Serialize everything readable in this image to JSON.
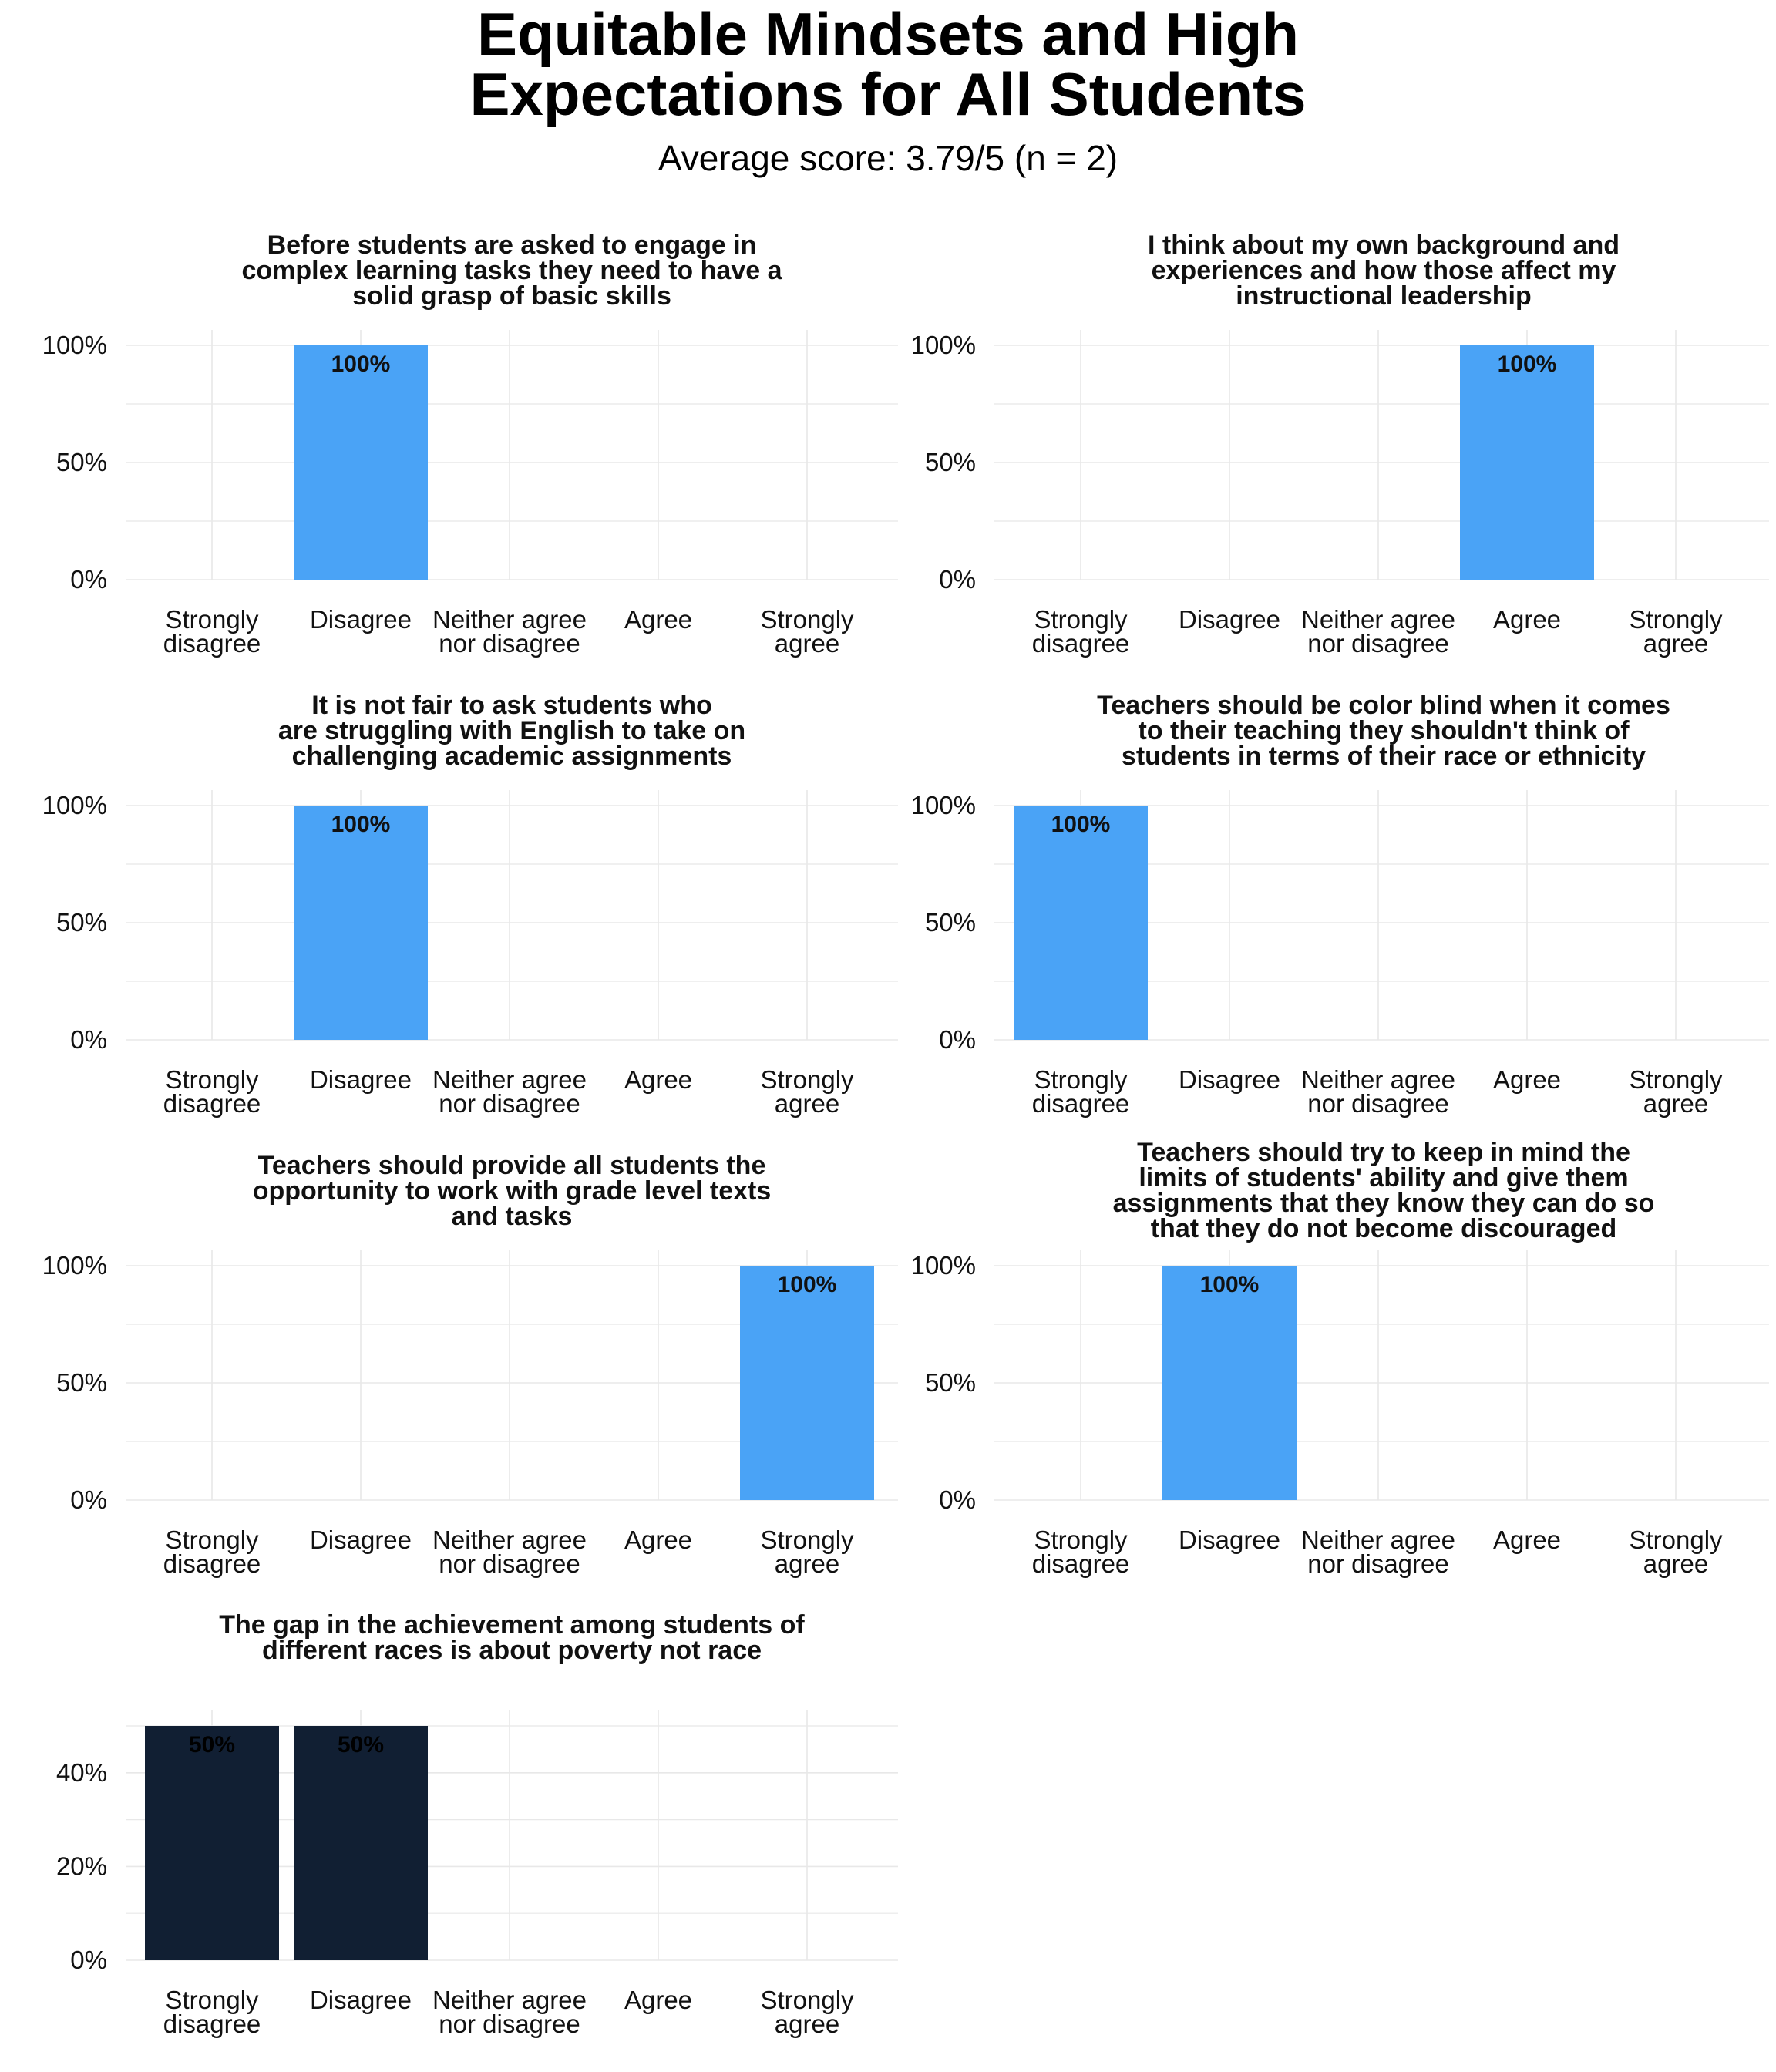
{
  "title_lines": [
    "Equitable Mindsets and High",
    "Expectations for All Students"
  ],
  "subtitle": "Average score: 3.79/5 (n = 2)",
  "colors": {
    "bar": "#4AA3F6",
    "bar_dark": "#111F33",
    "grid": "#E8E8E8",
    "label_light": "#111111",
    "label_on_dark": "#000000"
  },
  "chart_data": [
    {
      "type": "bar",
      "title_lines": [
        "Before students are asked to engage in",
        "complex learning tasks they need to have a",
        "solid grasp of basic skills"
      ],
      "categories": [
        [
          "Strongly",
          "disagree"
        ],
        [
          "Disagree"
        ],
        [
          "Neither agree",
          "nor disagree"
        ],
        [
          "Agree"
        ],
        [
          "Strongly",
          "agree"
        ]
      ],
      "values": [
        0,
        1,
        0,
        0,
        0
      ],
      "data_labels": [
        "",
        "100%",
        "",
        "",
        ""
      ],
      "ylim": [
        0,
        1
      ],
      "yticks": [
        0,
        0.5,
        1
      ],
      "ytick_labels": [
        "0%",
        "50%",
        "100%"
      ],
      "bar_color": "#4AA3F6"
    },
    {
      "type": "bar",
      "title_lines": [
        "I think about my own background and",
        "experiences and how those affect my",
        "instructional leadership"
      ],
      "categories": [
        [
          "Strongly",
          "disagree"
        ],
        [
          "Disagree"
        ],
        [
          "Neither agree",
          "nor disagree"
        ],
        [
          "Agree"
        ],
        [
          "Strongly",
          "agree"
        ]
      ],
      "values": [
        0,
        0,
        0,
        1,
        0
      ],
      "data_labels": [
        "",
        "",
        "",
        "100%",
        ""
      ],
      "ylim": [
        0,
        1
      ],
      "yticks": [
        0,
        0.5,
        1
      ],
      "ytick_labels": [
        "0%",
        "50%",
        "100%"
      ],
      "bar_color": "#4AA3F6"
    },
    {
      "type": "bar",
      "title_lines": [
        "It is not fair to ask students who",
        "are struggling with English to take on",
        "challenging academic assignments"
      ],
      "categories": [
        [
          "Strongly",
          "disagree"
        ],
        [
          "Disagree"
        ],
        [
          "Neither agree",
          "nor disagree"
        ],
        [
          "Agree"
        ],
        [
          "Strongly",
          "agree"
        ]
      ],
      "values": [
        0,
        1,
        0,
        0,
        0
      ],
      "data_labels": [
        "",
        "100%",
        "",
        "",
        ""
      ],
      "ylim": [
        0,
        1
      ],
      "yticks": [
        0,
        0.5,
        1
      ],
      "ytick_labels": [
        "0%",
        "50%",
        "100%"
      ],
      "bar_color": "#4AA3F6"
    },
    {
      "type": "bar",
      "title_lines": [
        "Teachers should be color blind when it comes",
        "to their teaching they shouldn't think of",
        "students in terms of their race or ethnicity"
      ],
      "categories": [
        [
          "Strongly",
          "disagree"
        ],
        [
          "Disagree"
        ],
        [
          "Neither agree",
          "nor disagree"
        ],
        [
          "Agree"
        ],
        [
          "Strongly",
          "agree"
        ]
      ],
      "values": [
        1,
        0,
        0,
        0,
        0
      ],
      "data_labels": [
        "100%",
        "",
        "",
        "",
        ""
      ],
      "ylim": [
        0,
        1
      ],
      "yticks": [
        0,
        0.5,
        1
      ],
      "ytick_labels": [
        "0%",
        "50%",
        "100%"
      ],
      "bar_color": "#4AA3F6"
    },
    {
      "type": "bar",
      "title_lines": [
        "Teachers should provide all students the",
        "opportunity to work with grade level texts",
        "and tasks"
      ],
      "categories": [
        [
          "Strongly",
          "disagree"
        ],
        [
          "Disagree"
        ],
        [
          "Neither agree",
          "nor disagree"
        ],
        [
          "Agree"
        ],
        [
          "Strongly",
          "agree"
        ]
      ],
      "values": [
        0,
        0,
        0,
        0,
        1
      ],
      "data_labels": [
        "",
        "",
        "",
        "",
        "100%"
      ],
      "ylim": [
        0,
        1
      ],
      "yticks": [
        0,
        0.5,
        1
      ],
      "ytick_labels": [
        "0%",
        "50%",
        "100%"
      ],
      "bar_color": "#4AA3F6"
    },
    {
      "type": "bar",
      "title_lines": [
        "Teachers should try to keep in mind the",
        "limits of students' ability and give them",
        "assignments that they know they can do so",
        "that they do not become discouraged"
      ],
      "categories": [
        [
          "Strongly",
          "disagree"
        ],
        [
          "Disagree"
        ],
        [
          "Neither agree",
          "nor disagree"
        ],
        [
          "Agree"
        ],
        [
          "Strongly",
          "agree"
        ]
      ],
      "values": [
        0,
        1,
        0,
        0,
        0
      ],
      "data_labels": [
        "",
        "100%",
        "",
        "",
        ""
      ],
      "ylim": [
        0,
        1
      ],
      "yticks": [
        0,
        0.5,
        1
      ],
      "ytick_labels": [
        "0%",
        "50%",
        "100%"
      ],
      "bar_color": "#4AA3F6"
    },
    {
      "type": "bar",
      "title_lines": [
        "The gap in the achievement among students of",
        "different races is about poverty not race"
      ],
      "categories": [
        [
          "Strongly",
          "disagree"
        ],
        [
          "Disagree"
        ],
        [
          "Neither agree",
          "nor disagree"
        ],
        [
          "Agree"
        ],
        [
          "Strongly",
          "agree"
        ]
      ],
      "values": [
        0.5,
        0.5,
        0,
        0,
        0
      ],
      "data_labels": [
        "50%",
        "50%",
        "",
        "",
        ""
      ],
      "ylim": [
        0,
        0.5
      ],
      "yticks": [
        0,
        0.2,
        0.4
      ],
      "ytick_labels": [
        "0%",
        "20%",
        "40%"
      ],
      "bar_color": "#111F33"
    }
  ]
}
